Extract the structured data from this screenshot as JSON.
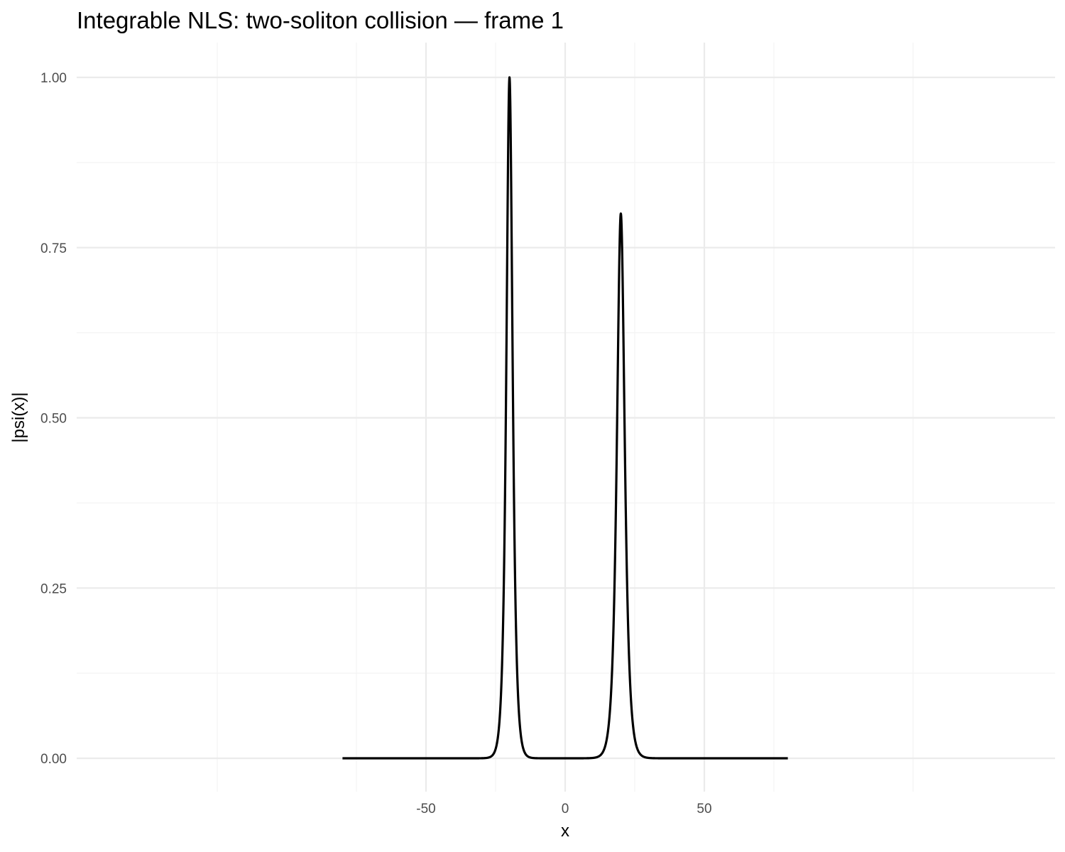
{
  "chart_data": {
    "type": "line",
    "title": "Integrable NLS: two-soliton collision — frame 1",
    "xlabel": "x",
    "ylabel": "|psi(x)|",
    "xlim": [
      -80,
      80
    ],
    "ylim": [
      0,
      1
    ],
    "x_ticks": [
      -50,
      0,
      50
    ],
    "x_tick_labels": [
      "-50",
      "0",
      "50"
    ],
    "y_ticks": [
      0,
      0.25,
      0.5,
      0.75,
      1
    ],
    "y_tick_labels": [
      "0.00",
      "0.25",
      "0.50",
      "0.75",
      "1.00"
    ],
    "grid": true,
    "line_color": "#000000",
    "series": [
      {
        "solitons": [
          {
            "center": -20,
            "amplitude": 1.0
          },
          {
            "center": 20,
            "amplitude": 0.8
          }
        ],
        "profile": "sech"
      }
    ]
  }
}
